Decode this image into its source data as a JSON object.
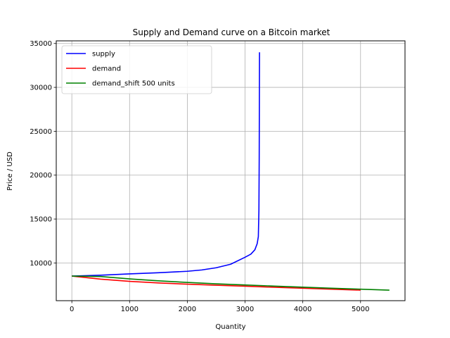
{
  "chart_data": {
    "type": "line",
    "title": "Supply and Demand curve on a Bitcoin market",
    "xlabel": "Quantity",
    "ylabel": "Price / USD",
    "xlim": [
      -270,
      5770
    ],
    "ylim": [
      5700,
      35300
    ],
    "xticks": [
      0,
      1000,
      2000,
      3000,
      4000,
      5000
    ],
    "yticks": [
      10000,
      15000,
      20000,
      25000,
      30000,
      35000
    ],
    "grid": true,
    "legend_position": "top-left",
    "series": [
      {
        "name": "supply",
        "color": "#0000ff",
        "points": [
          [
            0,
            8500
          ],
          [
            500,
            8600
          ],
          [
            1000,
            8750
          ],
          [
            1500,
            8880
          ],
          [
            2000,
            9050
          ],
          [
            2250,
            9200
          ],
          [
            2500,
            9450
          ],
          [
            2750,
            9850
          ],
          [
            3000,
            10650
          ],
          [
            3100,
            11000
          ],
          [
            3170,
            11500
          ],
          [
            3210,
            12200
          ],
          [
            3230,
            13000
          ],
          [
            3240,
            16000
          ],
          [
            3245,
            22000
          ],
          [
            3250,
            34000
          ]
        ]
      },
      {
        "name": "demand",
        "color": "#ff0000",
        "points": [
          [
            0,
            8500
          ],
          [
            500,
            8150
          ],
          [
            1000,
            7900
          ],
          [
            1500,
            7720
          ],
          [
            2000,
            7580
          ],
          [
            2500,
            7460
          ],
          [
            3000,
            7350
          ],
          [
            3500,
            7230
          ],
          [
            4000,
            7120
          ],
          [
            4500,
            7010
          ],
          [
            5000,
            6900
          ]
        ]
      },
      {
        "name": "demand_shift 500 units",
        "color": "#008000",
        "points": [
          [
            0,
            8500
          ],
          [
            500,
            8450
          ],
          [
            1000,
            8180
          ],
          [
            1500,
            7960
          ],
          [
            2000,
            7780
          ],
          [
            2500,
            7620
          ],
          [
            3000,
            7490
          ],
          [
            3500,
            7360
          ],
          [
            4000,
            7240
          ],
          [
            4500,
            7120
          ],
          [
            5000,
            7010
          ],
          [
            5500,
            6900
          ]
        ]
      }
    ]
  }
}
